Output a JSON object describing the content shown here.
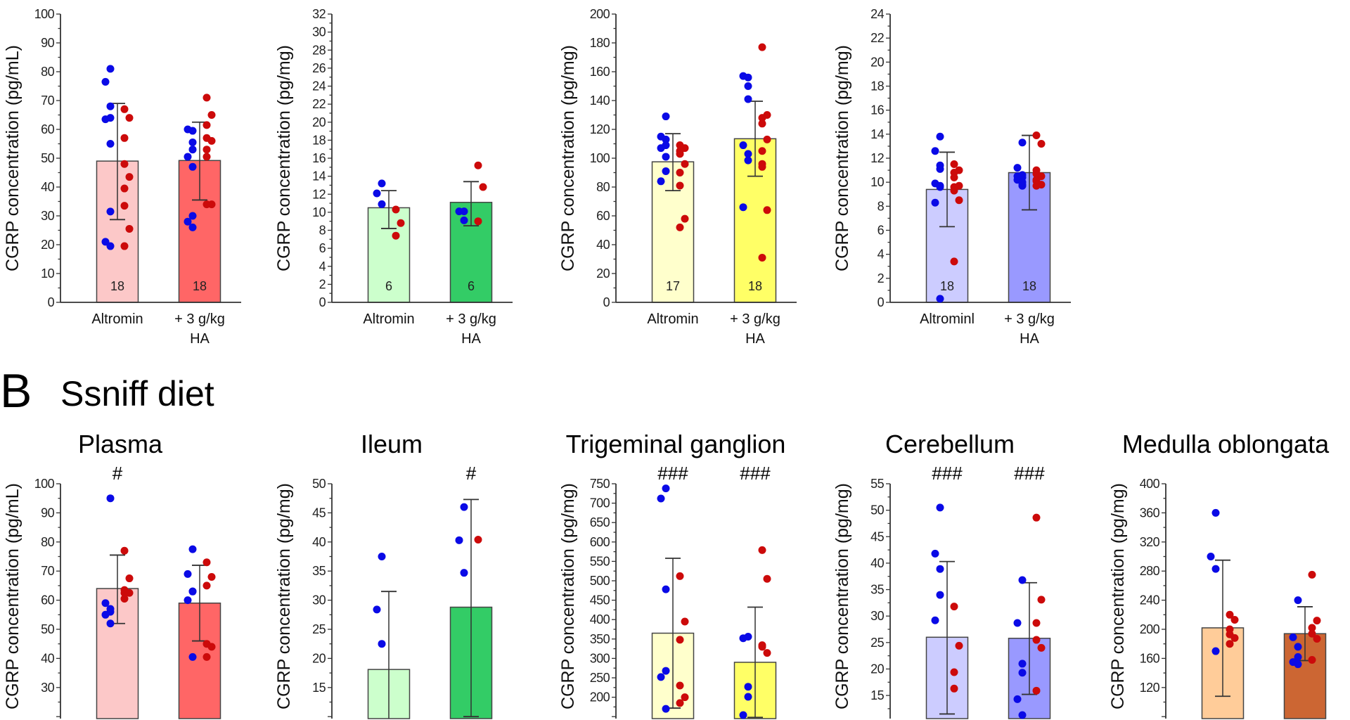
{
  "section": {
    "letter": "B",
    "title": "Ssniff diet"
  },
  "colors": {
    "blue_points": "#0a0ae6",
    "red_points": "#cc0a0a",
    "axis": "#333333"
  },
  "chart_data": [
    {
      "type": "bar",
      "row": "top",
      "title": "",
      "ylabel": "CGRP concentration (pg/mL)",
      "ylim": [
        0,
        100
      ],
      "ytick_major": 10,
      "ytick_minor": 5,
      "bar_colors": [
        "#fcc8c8",
        "#ff6666"
      ],
      "categories": [
        "Altromin",
        "+ 3 g/kg HA"
      ],
      "category_lines": [
        [
          "Altromin"
        ],
        [
          "+ 3 g/kg",
          "HA"
        ]
      ],
      "groups": [
        {
          "mean": 49,
          "err": [
            28.7,
            69
          ],
          "n": "18",
          "sig": "",
          "blue": [
            81,
            76.5,
            68,
            64,
            63.5,
            55,
            31.5,
            21,
            19.5
          ],
          "red": [
            67,
            64,
            57,
            48,
            43.5,
            39.5,
            33.5,
            25.5,
            19.5
          ]
        },
        {
          "mean": 49.2,
          "err": [
            35.5,
            62.5
          ],
          "n": "18",
          "sig": "",
          "blue": [
            59.5,
            60,
            55.5,
            53,
            50.5,
            47,
            30,
            28,
            26
          ],
          "red": [
            71,
            65,
            61.5,
            57,
            56,
            53,
            50.5,
            34,
            34
          ]
        }
      ]
    },
    {
      "type": "bar",
      "row": "top",
      "title": "",
      "ylabel": "CGRP concentration (pg/mg)",
      "ylim": [
        0,
        32
      ],
      "ytick_major": 2,
      "ytick_minor": 1,
      "bar_colors": [
        "#ccffcc",
        "#33cc66"
      ],
      "categories": [
        "Altromin",
        "+ 3 g/kg HA"
      ],
      "category_lines": [
        [
          "Altromin"
        ],
        [
          "+ 3 g/kg",
          "HA"
        ]
      ],
      "groups": [
        {
          "mean": 10.5,
          "err": [
            8.2,
            12.4
          ],
          "n": "6",
          "sig": "",
          "blue": [
            13.2,
            12.1,
            10.9
          ],
          "red": [
            10.3,
            8.8,
            7.4
          ]
        },
        {
          "mean": 11.1,
          "err": [
            8.5,
            13.4
          ],
          "n": "6",
          "sig": "",
          "blue": [
            10.1,
            10.1,
            9.1
          ],
          "red": [
            15.2,
            12.8,
            9.0
          ]
        }
      ]
    },
    {
      "type": "bar",
      "row": "top",
      "title": "",
      "ylabel": "CGRP concentration (pg/mg)",
      "ylim": [
        0,
        200
      ],
      "ytick_major": 20,
      "ytick_minor": 10,
      "bar_colors": [
        "#ffffcc",
        "#ffff66"
      ],
      "categories": [
        "Altromin",
        "+ 3 g/kg HA"
      ],
      "category_lines": [
        [
          "Altromin"
        ],
        [
          "+ 3 g/kg",
          "HA"
        ]
      ],
      "groups": [
        {
          "mean": 97.5,
          "err": [
            77.5,
            117
          ],
          "n": "17",
          "sig": "",
          "blue": [
            129,
            115,
            113,
            109,
            107,
            101,
            91,
            84
          ],
          "red": [
            109,
            107,
            105,
            103,
            96,
            90,
            81,
            58,
            52
          ]
        },
        {
          "mean": 113.5,
          "err": [
            87.5,
            139.5
          ],
          "n": "18",
          "sig": "",
          "blue": [
            156,
            157,
            150,
            141,
            109,
            103,
            98.5,
            66
          ],
          "red": [
            177,
            130,
            128,
            124,
            113,
            96,
            94,
            64,
            31,
            105
          ]
        }
      ]
    },
    {
      "type": "bar",
      "row": "top",
      "title": "",
      "ylabel": "CGRP concentration (pg/mg)",
      "ylim": [
        0,
        24
      ],
      "ytick_major": 2,
      "ytick_minor": 1,
      "bar_colors": [
        "#ccccff",
        "#9999ff"
      ],
      "categories": [
        "Altrominl",
        "+ 3 g/kg HA"
      ],
      "category_lines": [
        [
          "Altrominl"
        ],
        [
          "+ 3 g/kg",
          "HA"
        ]
      ],
      "groups": [
        {
          "mean": 9.4,
          "err": [
            6.3,
            12.5
          ],
          "n": "18",
          "sig": "",
          "blue": [
            13.8,
            12.6,
            11.4,
            11.1,
            9.9,
            9.7,
            9.6,
            8.3,
            0.3
          ],
          "red": [
            11.5,
            11.0,
            10.8,
            10.4,
            9.7,
            9.6,
            9.3,
            8.5,
            3.4
          ]
        },
        {
          "mean": 10.8,
          "err": [
            7.7,
            13.9
          ],
          "n": "18",
          "sig": "",
          "blue": [
            13.3,
            11.2,
            10.6,
            10.4,
            10.2,
            10.0,
            9.8,
            10.5,
            9.7
          ],
          "red": [
            13.9,
            13.2,
            11.0,
            10.7,
            10.5,
            10.2,
            10.1,
            9.8,
            9.7
          ]
        }
      ]
    },
    {
      "type": "bar",
      "row": "bottom",
      "title": "Plasma",
      "ylabel": "CGRP concentration (pg/mL)",
      "ylim": [
        0,
        100
      ],
      "ytick_major": 10,
      "ytick_minor": 5,
      "bar_colors": [
        "#fcc8c8",
        "#ff6666"
      ],
      "categories": [],
      "category_lines": [],
      "groups": [
        {
          "mean": 64,
          "err": [
            52,
            75.5
          ],
          "n": "",
          "sig": "#",
          "blue": [
            95,
            59,
            57,
            56,
            55,
            52
          ],
          "red": [
            77,
            67.5,
            63.5,
            62.5,
            62.5,
            60.5
          ]
        },
        {
          "mean": 59,
          "err": [
            46,
            72
          ],
          "n": "",
          "sig": "",
          "blue": [
            77.5,
            69,
            63,
            63,
            60,
            40.5
          ],
          "red": [
            73,
            68,
            65,
            45,
            44,
            40.5
          ]
        }
      ]
    },
    {
      "type": "bar",
      "row": "bottom",
      "title": "Ileum",
      "ylabel": "CGRP concentration (pg/mg)",
      "ylim": [
        0,
        50
      ],
      "ytick_major": 5,
      "ytick_minor": 2.5,
      "bar_colors": [
        "#ccffcc",
        "#33cc66"
      ],
      "categories": [],
      "category_lines": [],
      "groups": [
        {
          "mean": 18.1,
          "err": [
            4.7,
            31.5
          ],
          "n": "",
          "sig": "",
          "blue": [
            37.5,
            28.4,
            22.5
          ],
          "red": []
        },
        {
          "mean": 28.8,
          "err": [
            10,
            47.3
          ],
          "n": "",
          "sig": "#",
          "blue": [
            46,
            40.3,
            34.7
          ],
          "red": [
            40.4
          ]
        }
      ]
    },
    {
      "type": "bar",
      "row": "bottom",
      "title": "Trigeminal ganglion",
      "ylabel": "CGRP concentration (pg/mg)",
      "ylim": [
        0,
        750
      ],
      "ytick_major": 50,
      "ytick_minor": 25,
      "bar_colors": [
        "#ffffcc",
        "#ffff66"
      ],
      "categories": [],
      "category_lines": [],
      "groups": [
        {
          "mean": 365,
          "err": [
            172,
            558
          ],
          "n": "",
          "sig": "###",
          "blue": [
            738,
            712,
            478,
            268,
            252,
            170
          ],
          "red": [
            512,
            395,
            348,
            230,
            200,
            185
          ]
        },
        {
          "mean": 290,
          "err": [
            148,
            432
          ],
          "n": "",
          "sig": "###",
          "blue": [
            356,
            352,
            227,
            201,
            145
          ],
          "red": [
            579,
            505,
            334,
            330,
            314
          ]
        }
      ]
    },
    {
      "type": "bar",
      "row": "bottom",
      "title": "Cerebellum",
      "ylabel": "CGRP concentration (pg/mg)",
      "ylim": [
        0,
        55
      ],
      "ytick_major": 5,
      "ytick_minor": 2.5,
      "bar_colors": [
        "#ccccff",
        "#9999ff"
      ],
      "categories": [],
      "category_lines": [],
      "groups": [
        {
          "mean": 26,
          "err": [
            11.5,
            40.3
          ],
          "n": "",
          "sig": "###",
          "blue": [
            50.5,
            41.8,
            38.9,
            34,
            29.2
          ],
          "red": [
            31.8,
            24.4,
            19.4,
            16.3
          ]
        },
        {
          "mean": 25.8,
          "err": [
            15.2,
            36.3
          ],
          "n": "",
          "sig": "###",
          "blue": [
            36.8,
            28.7,
            21,
            19.3,
            14.3,
            11
          ],
          "red": [
            48.6,
            33.1,
            28.7,
            25.5,
            24,
            15.9
          ]
        }
      ]
    },
    {
      "type": "bar",
      "row": "bottom",
      "title": "Medulla oblongata",
      "ylabel": "CGRP concentration (pg/mg)",
      "ylim": [
        0,
        400
      ],
      "ytick_major": 40,
      "ytick_minor": 20,
      "bar_colors": [
        "#ffcc99",
        "#cc6633"
      ],
      "categories": [],
      "category_lines": [],
      "groups": [
        {
          "mean": 202,
          "err": [
            108,
            295
          ],
          "n": "",
          "sig": "",
          "blue": [
            360,
            300,
            283,
            170
          ],
          "red": [
            220,
            213,
            200,
            193,
            188,
            180
          ]
        },
        {
          "mean": 194,
          "err": [
            157,
            231
          ],
          "n": "",
          "sig": "",
          "blue": [
            240,
            189,
            176,
            162,
            155,
            152
          ],
          "red": [
            275,
            212,
            202,
            194,
            187,
            158
          ]
        }
      ]
    }
  ]
}
